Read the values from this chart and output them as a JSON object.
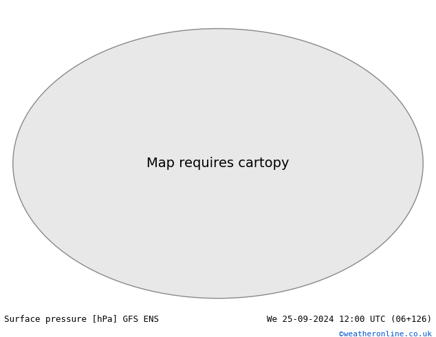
{
  "title_left": "Surface pressure [hPa] GFS ENS",
  "title_right": "We 25-09-2024 12:00 UTC (06+126)",
  "copyright": "©weatheronline.co.uk",
  "copyright_color": "#0055cc",
  "bg_color": "#ffffff",
  "map_bg_color": "#e8e8e8",
  "ocean_color": "#ffffff",
  "land_color": "#c8e6a0",
  "contour_interval": 4,
  "pressure_min": 960,
  "pressure_max": 1048,
  "contour_base": 1013,
  "line_color_below": "#0000cc",
  "line_color_above": "#cc0000",
  "line_color_base": "#000000",
  "label_fontsize": 6.5,
  "title_fontsize": 9,
  "copyright_fontsize": 8,
  "fig_width": 6.34,
  "fig_height": 4.9,
  "dpi": 100
}
